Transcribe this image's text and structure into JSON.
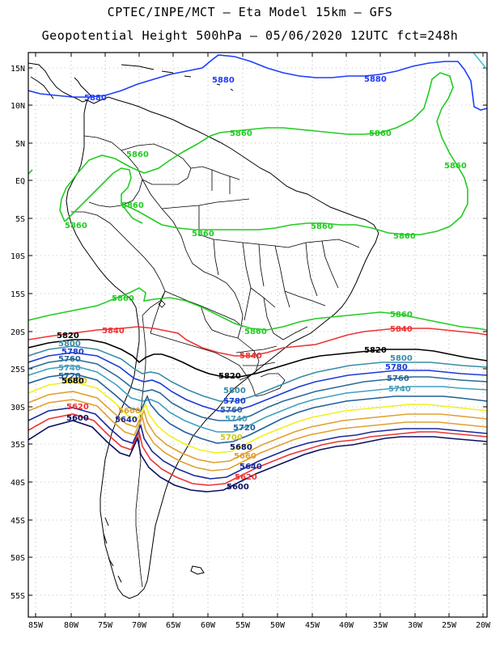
{
  "header": {
    "line1": "CPTEC/INPE/MCT –  Eta Model 15km – GFS",
    "line2": "Geopotential Height 500hPa – 05/06/2020 12UTC fct=248h"
  },
  "lat_labels": [
    "15N",
    "10N",
    "5N",
    "EQ",
    "5S",
    "10S",
    "15S",
    "20S",
    "25S",
    "30S",
    "35S",
    "40S",
    "45S",
    "50S",
    "55S"
  ],
  "lon_labels": [
    "85W",
    "80W",
    "75W",
    "70W",
    "65W",
    "60W",
    "55W",
    "50W",
    "45W",
    "40W",
    "35W",
    "30W",
    "25W",
    "20W"
  ],
  "contour_colors": {
    "5880": "#1e3cff",
    "5860": "#22cc22",
    "5840": "#ee3333",
    "5820": "#000000",
    "5800": "#3a8ca8",
    "5780": "#1a3ad8",
    "5760": "#2a6a9a",
    "5740": "#40a0c0",
    "5720": "#20609a",
    "5700": "#f0f020",
    "5680": "#e0a030",
    "5660": "#e0a030",
    "5640": "#1a2a9a",
    "5620": "#ee3333",
    "5600": "#0a1060"
  },
  "contour_labels": {
    "c5880a": "5880",
    "c5880b": "5880",
    "c5880c": "5880",
    "c5860a": "5860",
    "c5860b": "5860",
    "c5860c": "5860",
    "c5860d": "5860",
    "c5860e": "5860",
    "c5860f": "5860",
    "c5860g": "5860",
    "c5860h": "5860",
    "c5860i": "5860",
    "c5860j": "5860",
    "c5860k": "5860",
    "c5840a": "5840",
    "c5840b": "5840",
    "c5840c": "5840",
    "c5820a": "5820",
    "c5820b": "5820",
    "c5820c": "5820",
    "c5800a": "5800",
    "c5800b": "5800",
    "c5800c": "5800",
    "c5780a": "5780",
    "c5780b": "5780",
    "c5780c": "5780",
    "c5760a": "5760",
    "c5760b": "5760",
    "c5760c": "5760",
    "c5740a": "5740",
    "c5740b": "5740",
    "c5740c": "5740",
    "c5720a": "5720",
    "c5720b": "5720",
    "c5700a": "5700",
    "c5700b": "5700",
    "c5680a": "5680",
    "c5680b": "5680",
    "c5660a": "5660",
    "c5660b": "5660",
    "c5640a": "5640",
    "c5640b": "5640",
    "c5620a": "5620",
    "c5620b": "5620",
    "c5600a": "5600",
    "c5600b": "5600"
  }
}
